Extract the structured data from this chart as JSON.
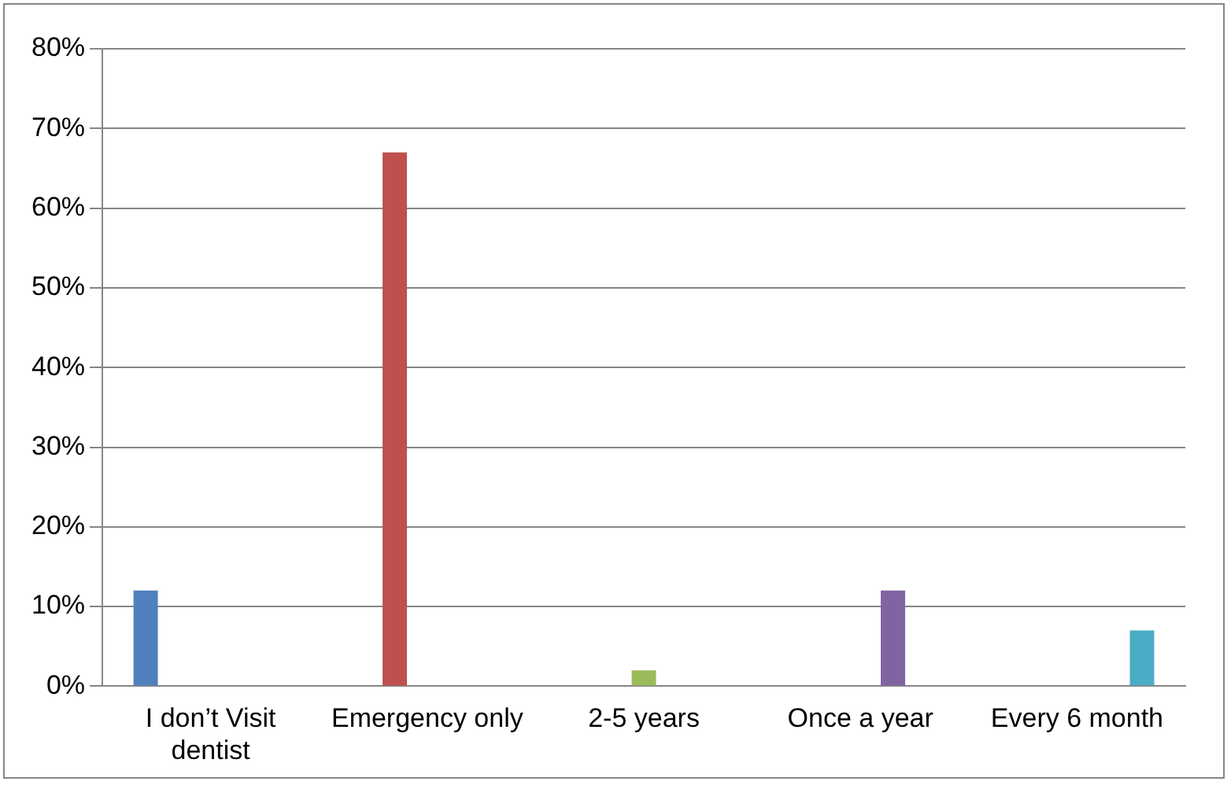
{
  "chart_data": {
    "type": "bar",
    "categories": [
      "I don’t Visit dentist",
      "Emergency only",
      "2-5 years",
      "Once a year",
      "Every 6 month"
    ],
    "series": [
      {
        "color": "#4f81bd",
        "values": [
          12,
          null,
          null,
          null,
          null
        ]
      },
      {
        "color": "#c0504d",
        "values": [
          null,
          67,
          null,
          null,
          null
        ]
      },
      {
        "color": "#9bbb59",
        "values": [
          null,
          null,
          2,
          null,
          null
        ]
      },
      {
        "color": "#8064a2",
        "values": [
          null,
          null,
          null,
          12,
          null
        ]
      },
      {
        "color": "#4bacc6",
        "values": [
          null,
          null,
          null,
          null,
          7
        ]
      }
    ],
    "ylim": [
      0,
      80
    ],
    "yticks": [
      {
        "value": 0,
        "label": "0%"
      },
      {
        "value": 10,
        "label": "10%"
      },
      {
        "value": 20,
        "label": "20%"
      },
      {
        "value": 30,
        "label": "30%"
      },
      {
        "value": 40,
        "label": "40%"
      },
      {
        "value": 50,
        "label": "50%"
      },
      {
        "value": 60,
        "label": "60%"
      },
      {
        "value": 70,
        "label": "70%"
      },
      {
        "value": 80,
        "label": "80%"
      }
    ],
    "grid": "y",
    "legend": false
  }
}
